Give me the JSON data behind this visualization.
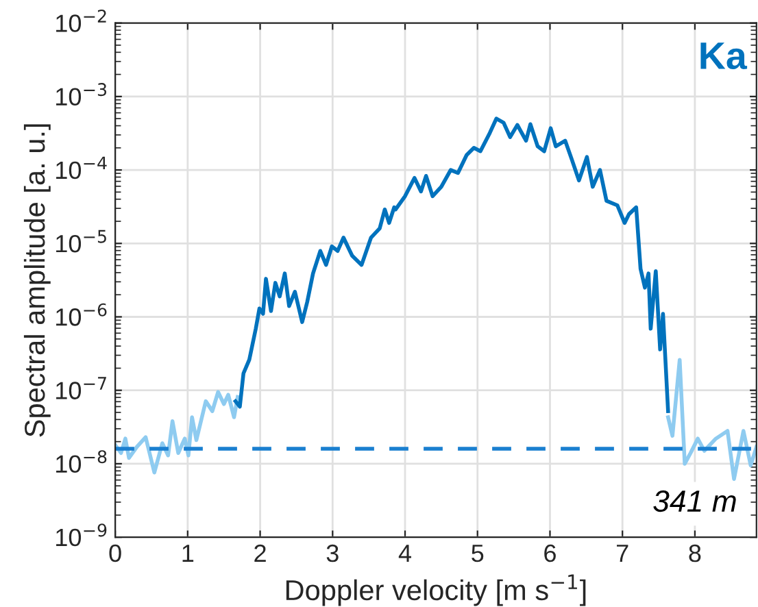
{
  "chart_data": {
    "type": "line",
    "xlabel": "Doppler velocity [m s$^{−1}$]",
    "ylabel": "Spectral amplitude [a. u.]",
    "log": "y",
    "grid": true,
    "line_style": "solid",
    "marker": "none",
    "legend": false,
    "xlim": [
      0,
      8.85
    ],
    "xticks": [
      0,
      1,
      2,
      3,
      4,
      5,
      6,
      7,
      8
    ],
    "ylim": [
      1e-09,
      0.01
    ],
    "yticks": [
      {
        "value": 1e-09,
        "label": "10$^{−9}$"
      },
      {
        "value": 1e-08,
        "label": "10$^{−8}$"
      },
      {
        "value": 1e-07,
        "label": "10$^{−7}$"
      },
      {
        "value": 1e-06,
        "label": "10$^{−6}$"
      },
      {
        "value": 1e-05,
        "label": "10$^{−5}$"
      },
      {
        "value": 0.0001,
        "label": "10$^{−4}$"
      },
      {
        "value": 0.001,
        "label": "10$^{−3}$"
      },
      {
        "value": 0.01,
        "label": "10$^{−2}$"
      }
    ],
    "series": [
      {
        "color": "#8ecbf0",
        "x": [
          0,
          0.08,
          0.14,
          0.19,
          0.3,
          0.42,
          0.54,
          0.65,
          0.73,
          0.79,
          0.87,
          0.96,
          1.01,
          1.06,
          1.12,
          1.25,
          1.34,
          1.42,
          1.5,
          1.56,
          1.64,
          1.69
        ],
        "values": [
          1.8e-08,
          1.4e-08,
          2.2e-08,
          1.2e-08,
          1.7e-08,
          2.3e-08,
          7.6e-09,
          1.9e-08,
          1.3e-08,
          3.8e-08,
          1.4e-08,
          2.2e-08,
          1.3e-08,
          4.3e-08,
          2.1e-08,
          7.1e-08,
          5.2e-08,
          9.5e-08,
          6.5e-08,
          8.7e-08,
          4.3e-08,
          8.1e-08
        ]
      },
      {
        "color": "#0072bd",
        "x": [
          1.66,
          1.72,
          1.77,
          1.85,
          1.94,
          1.99,
          2.04,
          2.08,
          2.15,
          2.21,
          2.27,
          2.34,
          2.4,
          2.48,
          2.58,
          2.65,
          2.73,
          2.83,
          2.91,
          2.99,
          3.07,
          3.15,
          3.27,
          3.4,
          3.53,
          3.65,
          3.72,
          3.78,
          3.85,
          3.87,
          4.0,
          4.13,
          4.22,
          4.29,
          4.38,
          4.5,
          4.63,
          4.73,
          4.85,
          4.95,
          5.04,
          5.17,
          5.26,
          5.36,
          5.45,
          5.55,
          5.67,
          5.73,
          5.83,
          5.92,
          6.01,
          6.08,
          6.21,
          6.3,
          6.4,
          6.51,
          6.59,
          6.69,
          6.78,
          6.93,
          7.03,
          7.09,
          7.19,
          7.25,
          7.31,
          7.36,
          7.39,
          7.46,
          7.52,
          7.56,
          7.63
        ],
        "values": [
          7.1e-08,
          6e-08,
          1.7e-07,
          2.6e-07,
          6.9e-07,
          1.3e-06,
          1.1e-06,
          3.3e-06,
          1.2e-06,
          2.9e-06,
          1.9e-06,
          3.9e-06,
          1.4e-06,
          2.2e-06,
          8.5e-07,
          1.6e-06,
          3.9e-06,
          7.9e-06,
          5.1e-06,
          9.1e-06,
          7.9e-06,
          1.2e-05,
          6.8e-06,
          5.1e-06,
          1.2e-05,
          1.6e-05,
          2.9e-05,
          1.9e-05,
          3.1e-05,
          2.9e-05,
          4.4e-05,
          7.8e-05,
          5.1e-05,
          8.3e-05,
          4.4e-05,
          5.9e-05,
          0.0001,
          9.1e-05,
          0.00016,
          0.0002,
          0.00018,
          0.00032,
          0.0005,
          0.00044,
          0.00028,
          0.00041,
          0.00025,
          0.00042,
          0.00021,
          0.00018,
          0.00037,
          0.00021,
          0.00025,
          0.00014,
          7.2e-05,
          0.00015,
          5.9e-05,
          0.0001,
          3.8e-05,
          3.3e-05,
          1.9e-05,
          2.5e-05,
          3.1e-05,
          4.5e-06,
          2.5e-06,
          3.9e-06,
          6.9e-07,
          4.2e-06,
          3.6e-07,
          1.1e-06,
          5.2e-08
        ]
      },
      {
        "color": "#8ecbf0",
        "x": [
          7.63,
          7.69,
          7.79,
          7.86,
          7.94,
          8.04,
          8.13,
          8.29,
          8.45,
          8.54,
          8.67,
          8.77,
          8.85
        ],
        "values": [
          4.3e-08,
          2.4e-08,
          2.6e-07,
          1e-08,
          1.4e-08,
          2.2e-08,
          1.5e-08,
          2.2e-08,
          2.8e-08,
          6.2e-09,
          2.8e-08,
          9.5e-09,
          1.7e-08
        ]
      }
    ],
    "ref_lines": [
      {
        "axis": "y",
        "value": 1.6e-08,
        "color": "#1a7fd0",
        "line_style": "dashed"
      }
    ],
    "annotations": [
      "Ka",
      "341 m"
    ]
  }
}
